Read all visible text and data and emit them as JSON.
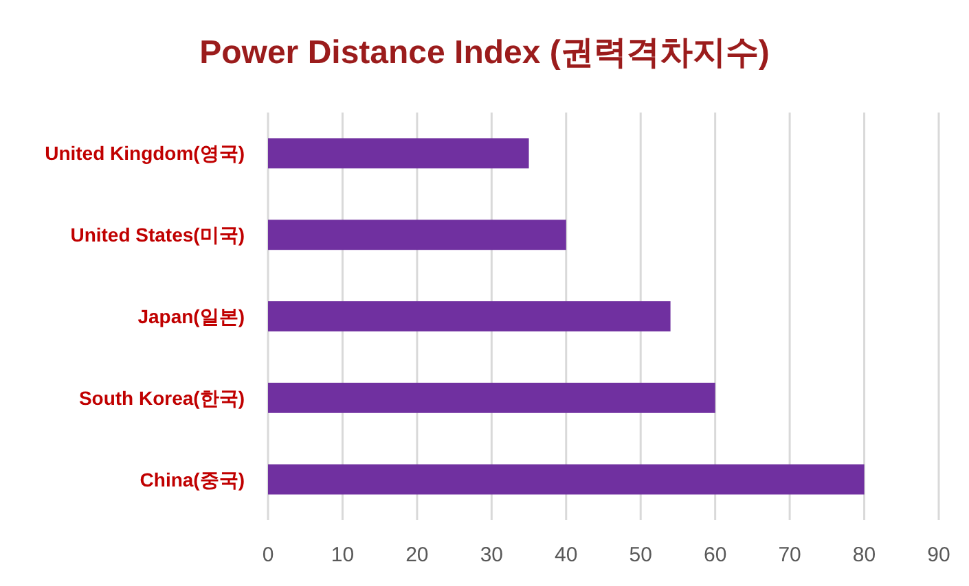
{
  "chart_data": {
    "type": "bar",
    "orientation": "horizontal",
    "title": "Power Distance Index (권력격차지수)",
    "categories": [
      "United Kingdom(영국)",
      "United States(미국)",
      "Japan(일본)",
      "South Korea(한국)",
      "China(중국)"
    ],
    "values": [
      35,
      40,
      54,
      60,
      80
    ],
    "color": "#7030a0",
    "xlim": [
      0,
      90
    ],
    "xticks": [
      0,
      10,
      20,
      30,
      40,
      50,
      60,
      70,
      80,
      90
    ],
    "grid": "x"
  }
}
